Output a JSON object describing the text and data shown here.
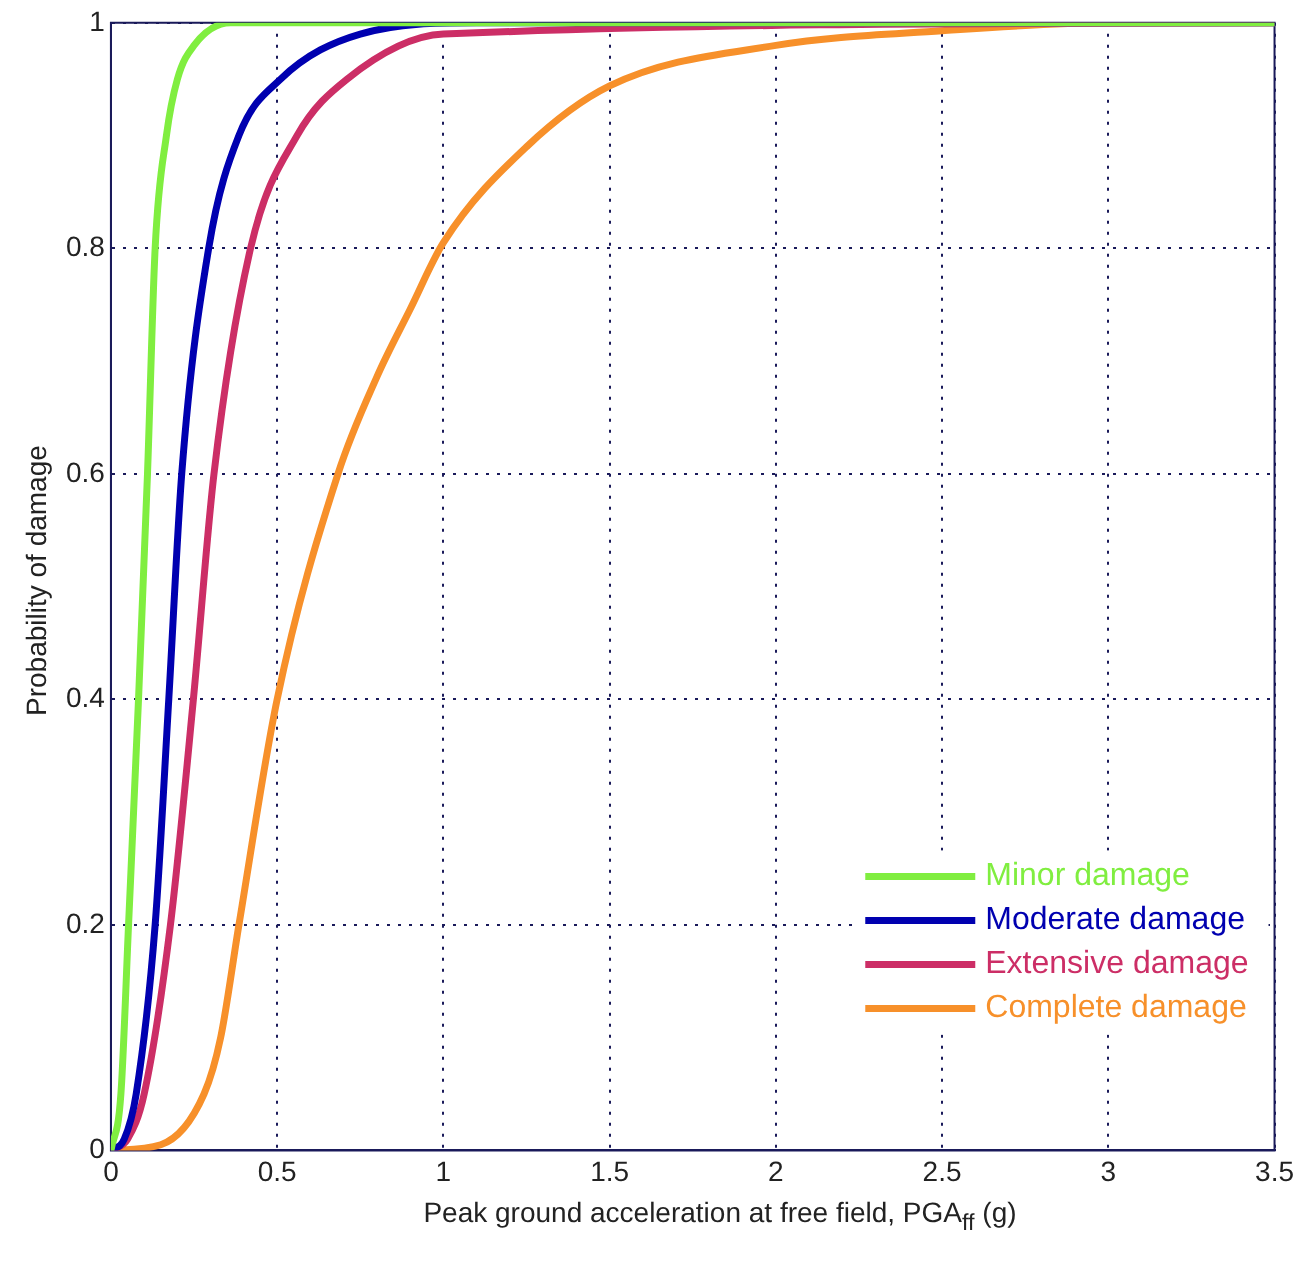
{
  "chart_data": {
    "type": "line",
    "xlabel": "Peak ground acceleration at free field, PGA$_{ff}$ (g)",
    "ylabel": "Probability of damage",
    "xlim": [
      0,
      3.5
    ],
    "xticks": [
      0,
      0.5,
      1,
      1.5,
      2,
      2.5,
      3,
      3.5
    ],
    "ylim": [
      0,
      1
    ],
    "yticks": [
      0,
      0.2,
      0.4,
      0.6,
      0.8,
      1
    ],
    "grid": true,
    "legend": "bottom right",
    "marker": "none",
    "line_style": "solid",
    "series": [
      {
        "name": "Minor damage",
        "color": "#80ee40",
        "x": [
          0,
          0.03,
          0.053,
          0.083,
          0.11,
          0.133,
          0.167,
          0.2,
          0.25,
          0.36,
          1,
          3.5
        ],
        "values": [
          0,
          0.05,
          0.2,
          0.4,
          0.6,
          0.8,
          0.9,
          0.95,
          0.98,
          1,
          1,
          1
        ]
      },
      {
        "name": "Moderate damage",
        "color": "#0000b0",
        "x": [
          0,
          0.04,
          0.076,
          0.133,
          0.174,
          0.213,
          0.294,
          0.385,
          0.51,
          0.75,
          1.1,
          3.5
        ],
        "values": [
          0,
          0.01,
          0.05,
          0.2,
          0.4,
          0.6,
          0.8,
          0.9,
          0.95,
          0.99,
          1,
          1
        ]
      },
      {
        "name": "Extensive damage",
        "color": "#cc2e66",
        "x": [
          0,
          0.05,
          0.1,
          0.179,
          0.248,
          0.31,
          0.42,
          0.56,
          0.71,
          1,
          3.5
        ],
        "values": [
          0,
          0.01,
          0.05,
          0.2,
          0.4,
          0.6,
          0.8,
          0.9,
          0.95,
          0.99,
          1
        ]
      },
      {
        "name": "Complete damage",
        "color": "#f7902a",
        "x": [
          0,
          0.15,
          0.28,
          0.33,
          0.385,
          0.5,
          0.683,
          0.8,
          0.9,
          1,
          1.25,
          1.5,
          2,
          2.5,
          3,
          3.5
        ],
        "values": [
          0,
          0.005,
          0.05,
          0.1,
          0.2,
          0.4,
          0.6,
          0.686,
          0.746,
          0.805,
          0.89,
          0.944,
          0.98,
          0.993,
          1,
          1
        ]
      }
    ]
  }
}
